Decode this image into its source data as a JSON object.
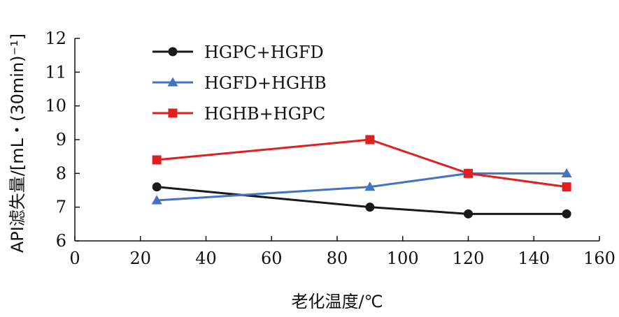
{
  "chart_data": {
    "type": "line",
    "xlabel": "老化温度/℃",
    "ylabel": "API滤失量/[mL・(30min)⁻¹]",
    "xlim": [
      0,
      160
    ],
    "ylim": [
      6,
      12
    ],
    "xticks": [
      0,
      20,
      40,
      60,
      80,
      100,
      120,
      140,
      160
    ],
    "yticks": [
      6,
      7,
      8,
      9,
      10,
      11,
      12
    ],
    "grid": false,
    "legend_position": "top-left",
    "series": [
      {
        "name": "HGPC+HGFD",
        "color": "#1a1a1a",
        "marker": "circle",
        "x": [
          25,
          90,
          120,
          150
        ],
        "y": [
          7.6,
          7.0,
          6.8,
          6.8
        ]
      },
      {
        "name": "HGFD+HGHB",
        "color": "#4472c4",
        "marker": "triangle",
        "x": [
          25,
          90,
          120,
          150
        ],
        "y": [
          7.2,
          7.6,
          8.0,
          8.0
        ]
      },
      {
        "name": "HGHB+HGPC",
        "color": "#e02020",
        "marker": "square",
        "x": [
          25,
          90,
          120,
          150
        ],
        "y": [
          8.4,
          9.0,
          8.0,
          7.6
        ]
      }
    ]
  }
}
